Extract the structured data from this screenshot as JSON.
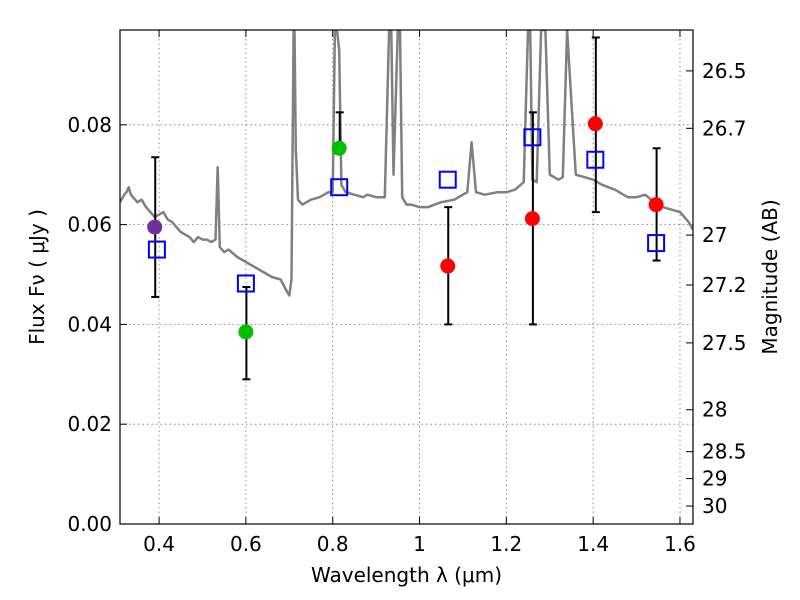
{
  "chart_data": {
    "type": "scatter",
    "title": "",
    "xlabel": "Wavelength  λ (μm)",
    "ylabel": "Flux  Fν  ( μJy )",
    "y2label": "Magnitude (AB)",
    "xlim": [
      0.31,
      1.63
    ],
    "ylim": [
      0.0,
      0.099
    ],
    "xticks": [
      "0.4",
      "0.6",
      "0.8",
      "1",
      "1.2",
      "1.4",
      "1.6"
    ],
    "xtick_values": [
      0.4,
      0.6,
      0.8,
      1.0,
      1.2,
      1.4,
      1.6
    ],
    "yticks": [
      "0.00",
      "0.02",
      "0.04",
      "0.06",
      "0.08"
    ],
    "ytick_values": [
      0.0,
      0.02,
      0.04,
      0.06,
      0.08
    ],
    "y2ticks": [
      "26.5",
      "26.7",
      "27",
      "27.2",
      "27.5",
      "28",
      "28.5",
      "29",
      "30"
    ],
    "y2tick_flux_values": [
      0.0908,
      0.0793,
      0.0579,
      0.0479,
      0.0363,
      0.0229,
      0.0145,
      0.0091,
      0.0036
    ],
    "grid": true,
    "colors": {
      "model": "#808080",
      "photometry_blue": "#7030a0",
      "photometry_green": "#00c000",
      "photometry_red": "#ff0000",
      "synthetic": "#0000ff",
      "errorbar": "#000000"
    },
    "series": [
      {
        "name": "model spectrum",
        "kind": "line",
        "color": "#808080",
        "x": [
          0.31,
          0.32,
          0.325,
          0.33,
          0.335,
          0.34,
          0.35,
          0.36,
          0.37,
          0.38,
          0.39,
          0.4,
          0.41,
          0.42,
          0.43,
          0.44,
          0.45,
          0.46,
          0.47,
          0.48,
          0.49,
          0.5,
          0.51,
          0.52,
          0.53,
          0.535,
          0.54,
          0.55,
          0.56,
          0.58,
          0.6,
          0.62,
          0.64,
          0.66,
          0.68,
          0.695,
          0.7,
          0.705,
          0.708,
          0.71,
          0.712,
          0.715,
          0.72,
          0.73,
          0.75,
          0.77,
          0.79,
          0.8,
          0.805,
          0.81,
          0.815,
          0.82,
          0.83,
          0.85,
          0.87,
          0.88,
          0.9,
          0.92,
          0.93,
          0.935,
          0.94,
          0.95,
          0.955,
          0.96,
          0.97,
          0.98,
          1.0,
          1.02,
          1.05,
          1.08,
          1.1,
          1.11,
          1.12,
          1.13,
          1.15,
          1.18,
          1.2,
          1.22,
          1.24,
          1.25,
          1.255,
          1.26,
          1.27,
          1.28,
          1.29,
          1.3,
          1.31,
          1.32,
          1.33,
          1.34,
          1.36,
          1.38,
          1.4,
          1.42,
          1.45,
          1.48,
          1.5,
          1.52,
          1.54,
          1.56,
          1.58,
          1.6,
          1.62,
          1.63
        ],
        "y": [
          0.0645,
          0.066,
          0.0665,
          0.0675,
          0.066,
          0.0655,
          0.0645,
          0.065,
          0.0635,
          0.0625,
          0.0615,
          0.062,
          0.0625,
          0.061,
          0.0605,
          0.0595,
          0.0585,
          0.058,
          0.0575,
          0.0565,
          0.0575,
          0.057,
          0.057,
          0.0565,
          0.057,
          0.0715,
          0.0555,
          0.0545,
          0.055,
          0.0535,
          0.0525,
          0.0515,
          0.0505,
          0.0495,
          0.049,
          0.0465,
          0.0458,
          0.049,
          0.08,
          0.099,
          0.099,
          0.075,
          0.065,
          0.064,
          0.065,
          0.0655,
          0.0665,
          0.0665,
          0.099,
          0.099,
          0.095,
          0.068,
          0.0665,
          0.066,
          0.0655,
          0.066,
          0.0655,
          0.0655,
          0.099,
          0.099,
          0.07,
          0.099,
          0.099,
          0.0655,
          0.064,
          0.064,
          0.0635,
          0.0635,
          0.0645,
          0.065,
          0.066,
          0.0665,
          0.0765,
          0.0665,
          0.066,
          0.0665,
          0.0665,
          0.067,
          0.0685,
          0.099,
          0.099,
          0.069,
          0.0685,
          0.099,
          0.099,
          0.07,
          0.0695,
          0.069,
          0.0695,
          0.099,
          0.07,
          0.0695,
          0.069,
          0.068,
          0.067,
          0.0655,
          0.0655,
          0.066,
          0.0645,
          0.0635,
          0.063,
          0.0625,
          0.0605,
          0.059
        ]
      },
      {
        "name": "synthetic photometry",
        "kind": "square",
        "color": "#0000ff",
        "x": [
          0.395,
          0.6,
          0.815,
          1.065,
          1.26,
          1.405,
          1.545
        ],
        "y": [
          0.055,
          0.0482,
          0.0675,
          0.069,
          0.0775,
          0.073,
          0.0563
        ]
      },
      {
        "name": "observed photometry",
        "kind": "circle",
        "x": [
          0.39,
          0.6,
          0.815,
          1.065,
          1.26,
          1.405,
          1.545
        ],
        "y": [
          0.0595,
          0.0385,
          0.0753,
          0.0517,
          0.0612,
          0.0802,
          0.064
        ],
        "point_colors": [
          "#7030a0",
          "#00c000",
          "#00c000",
          "#ff0000",
          "#ff0000",
          "#ff0000",
          "#ff0000"
        ],
        "error_low": [
          0.0455,
          0.029,
          null,
          0.04,
          0.04,
          0.0625,
          0.0528
        ],
        "error_high": [
          0.0735,
          0.0475,
          0.0825,
          0.0635,
          0.0825,
          0.0975,
          0.0753
        ]
      }
    ]
  }
}
